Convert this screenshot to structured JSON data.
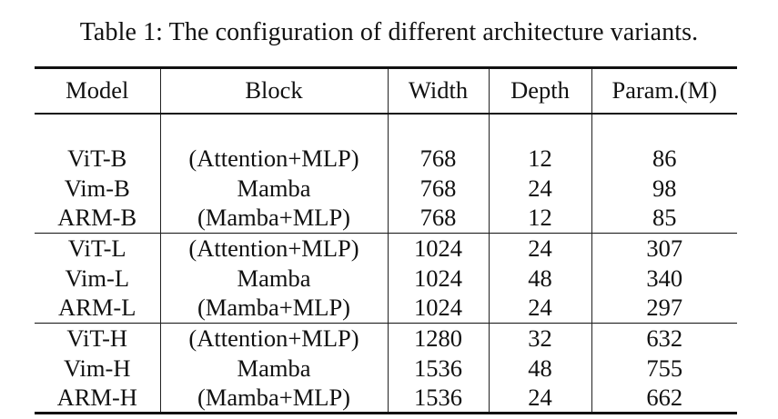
{
  "caption": "Table 1: The configuration of different architecture variants.",
  "table": {
    "headers": [
      "Model",
      "Block",
      "Width",
      "Depth",
      "Param.(M)"
    ],
    "groups": [
      [
        [
          "ViT-B",
          "(Attention+MLP)",
          "768",
          "12",
          "86"
        ],
        [
          "Vim-B",
          "Mamba",
          "768",
          "24",
          "98"
        ],
        [
          "ARM-B",
          "(Mamba+MLP)",
          "768",
          "12",
          "85"
        ]
      ],
      [
        [
          "ViT-L",
          "(Attention+MLP)",
          "1024",
          "24",
          "307"
        ],
        [
          "Vim-L",
          "Mamba",
          "1024",
          "48",
          "340"
        ],
        [
          "ARM-L",
          "(Mamba+MLP)",
          "1024",
          "24",
          "297"
        ]
      ],
      [
        [
          "ViT-H",
          "(Attention+MLP)",
          "1280",
          "32",
          "632"
        ],
        [
          "Vim-H",
          "Mamba",
          "1536",
          "48",
          "755"
        ],
        [
          "ARM-H",
          "(Mamba+MLP)",
          "1536",
          "24",
          "662"
        ]
      ]
    ]
  }
}
